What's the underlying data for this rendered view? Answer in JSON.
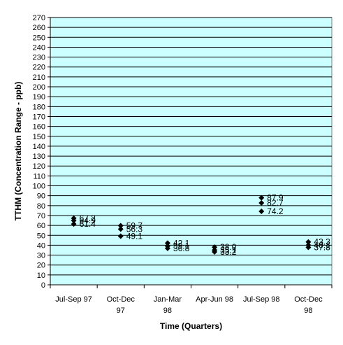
{
  "chart_data": {
    "type": "scatter",
    "title": "",
    "xlabel": "Time (Quarters)",
    "ylabel": "TTHM (Concentration Range - ppb)",
    "ylim": [
      0,
      270
    ],
    "ytick_step": 10,
    "grid": true,
    "legend": "none",
    "colors": {
      "plot_background": "#ccffff",
      "marker": "#000000",
      "grid": "#000000"
    },
    "categories": [
      [
        "Jul-Sep 97"
      ],
      [
        "Oct-Dec",
        "97"
      ],
      [
        "Jan-Mar",
        "98"
      ],
      [
        "Apr-Jun 98"
      ],
      [
        "Jul-Sep 98"
      ],
      [
        "Oct-Dec",
        "98"
      ]
    ],
    "points": [
      {
        "category": 0,
        "values": [
          67.2,
          64.9,
          61.4
        ]
      },
      {
        "category": 1,
        "values": [
          59.7,
          56.3,
          49.1
        ]
      },
      {
        "category": 2,
        "values": [
          42.1,
          39.1,
          36.8
        ]
      },
      {
        "category": 3,
        "values": [
          38.0,
          35.1,
          33.2
        ]
      },
      {
        "category": 4,
        "values": [
          87.9,
          82.7,
          74.2
        ]
      },
      {
        "category": 5,
        "values": [
          43.3,
          40.1,
          37.8
        ]
      }
    ]
  }
}
